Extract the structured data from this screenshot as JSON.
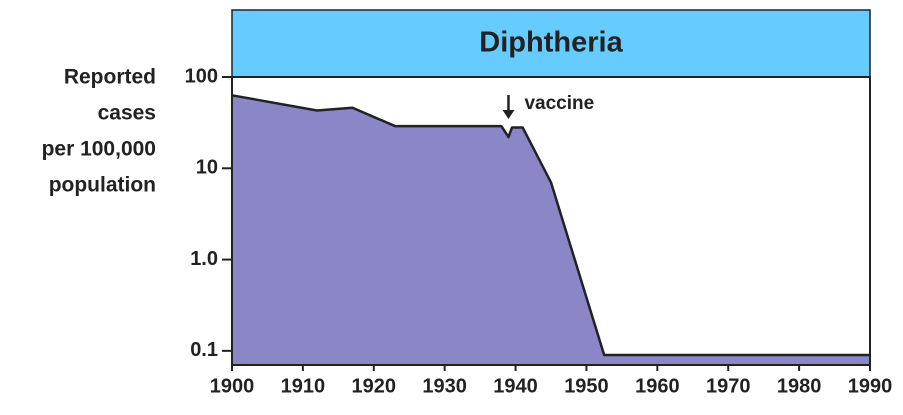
{
  "chart_data": {
    "type": "area",
    "title": "Diphtheria",
    "ylabel": [
      "Reported",
      "cases",
      "per 100,000",
      "population"
    ],
    "x": [
      1900,
      1912,
      1917,
      1923,
      1938,
      1939,
      1939.5,
      1941,
      1945,
      1952.5,
      1990
    ],
    "series": [
      {
        "name": "Diphtheria",
        "color": "#8b86c6",
        "values": [
          63,
          43,
          46,
          29,
          29,
          22,
          28,
          28,
          7,
          0.09,
          0.09
        ]
      }
    ],
    "xlim": [
      1900,
      1990
    ],
    "xticks": [
      1900,
      1910,
      1920,
      1930,
      1940,
      1950,
      1960,
      1970,
      1980,
      1990
    ],
    "ylim": [
      0.07,
      100
    ],
    "yticks": [
      0.1,
      {
        "value": 1,
        "label": "1.0"
      },
      10,
      100
    ],
    "log_y": true,
    "title_color": "#66ccff",
    "annotations": [
      {
        "text": "vaccine",
        "x": 1939
      }
    ]
  }
}
